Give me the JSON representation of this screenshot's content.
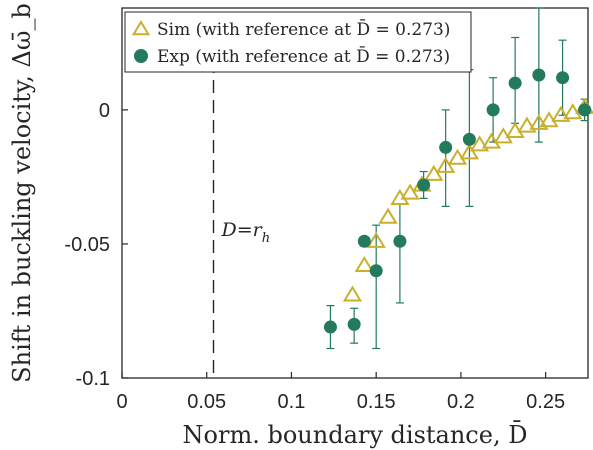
{
  "chart_data": {
    "type": "scatter",
    "xlabel": "Norm. boundary distance, D̄",
    "ylabel": "Shift in buckling velocity, Δω̄_b",
    "xlim": [
      0,
      0.275
    ],
    "ylim": [
      -0.1,
      0.038
    ],
    "xticks": [
      0,
      0.05,
      0.1,
      0.15,
      0.2,
      0.25
    ],
    "xtick_labels": [
      "0",
      "0.05",
      "0.1",
      "0.15",
      "0.2",
      "0.25"
    ],
    "yticks": [
      -0.1,
      -0.05,
      0
    ],
    "ytick_labels": [
      "-0.1",
      "-0.05",
      "0"
    ],
    "grid": false,
    "legend_position": "top-left",
    "annotation": {
      "text": "D=r",
      "subscript": "h",
      "x": 0.054
    },
    "colors": {
      "sim": "#c9b02c",
      "exp": "#237a5c",
      "axis": "#262626"
    },
    "series": [
      {
        "name": "Sim (with reference at D̄ = 0.273)",
        "marker": "triangle-open",
        "points": [
          {
            "x": 0.136,
            "y": -0.069
          },
          {
            "x": 0.143,
            "y": -0.058
          },
          {
            "x": 0.15,
            "y": -0.049
          },
          {
            "x": 0.157,
            "y": -0.04
          },
          {
            "x": 0.164,
            "y": -0.033
          },
          {
            "x": 0.17,
            "y": -0.031
          },
          {
            "x": 0.177,
            "y": -0.028
          },
          {
            "x": 0.184,
            "y": -0.024
          },
          {
            "x": 0.191,
            "y": -0.021
          },
          {
            "x": 0.198,
            "y": -0.018
          },
          {
            "x": 0.205,
            "y": -0.016
          },
          {
            "x": 0.211,
            "y": -0.013
          },
          {
            "x": 0.218,
            "y": -0.012
          },
          {
            "x": 0.225,
            "y": -0.01
          },
          {
            "x": 0.232,
            "y": -0.008
          },
          {
            "x": 0.239,
            "y": -0.006
          },
          {
            "x": 0.246,
            "y": -0.005
          },
          {
            "x": 0.252,
            "y": -0.004
          },
          {
            "x": 0.259,
            "y": -0.002
          },
          {
            "x": 0.266,
            "y": -0.001
          },
          {
            "x": 0.273,
            "y": 0.001
          }
        ]
      },
      {
        "name": "Exp (with reference at D̄ = 0.273)",
        "marker": "circle-filled",
        "points": [
          {
            "x": 0.123,
            "y": -0.081,
            "lo": -0.089,
            "hi": -0.073
          },
          {
            "x": 0.137,
            "y": -0.08,
            "lo": -0.087,
            "hi": -0.074
          },
          {
            "x": 0.143,
            "y": -0.049,
            "lo": -0.05,
            "hi": -0.048
          },
          {
            "x": 0.15,
            "y": -0.06,
            "lo": -0.089,
            "hi": -0.043
          },
          {
            "x": 0.164,
            "y": -0.049,
            "lo": -0.072,
            "hi": -0.035
          },
          {
            "x": 0.178,
            "y": -0.028,
            "lo": -0.033,
            "hi": -0.023
          },
          {
            "x": 0.191,
            "y": -0.014,
            "lo": -0.036,
            "hi": 0.0
          },
          {
            "x": 0.205,
            "y": -0.011,
            "lo": -0.036,
            "hi": 0.015
          },
          {
            "x": 0.219,
            "y": 0.0,
            "lo": -0.012,
            "hi": 0.012
          },
          {
            "x": 0.232,
            "y": 0.01,
            "lo": -0.005,
            "hi": 0.027
          },
          {
            "x": 0.246,
            "y": 0.013,
            "lo": -0.012,
            "hi": 0.038
          },
          {
            "x": 0.26,
            "y": 0.012,
            "lo": -0.002,
            "hi": 0.026
          },
          {
            "x": 0.273,
            "y": 0.0,
            "lo": -0.004,
            "hi": 0.004
          }
        ]
      }
    ]
  }
}
